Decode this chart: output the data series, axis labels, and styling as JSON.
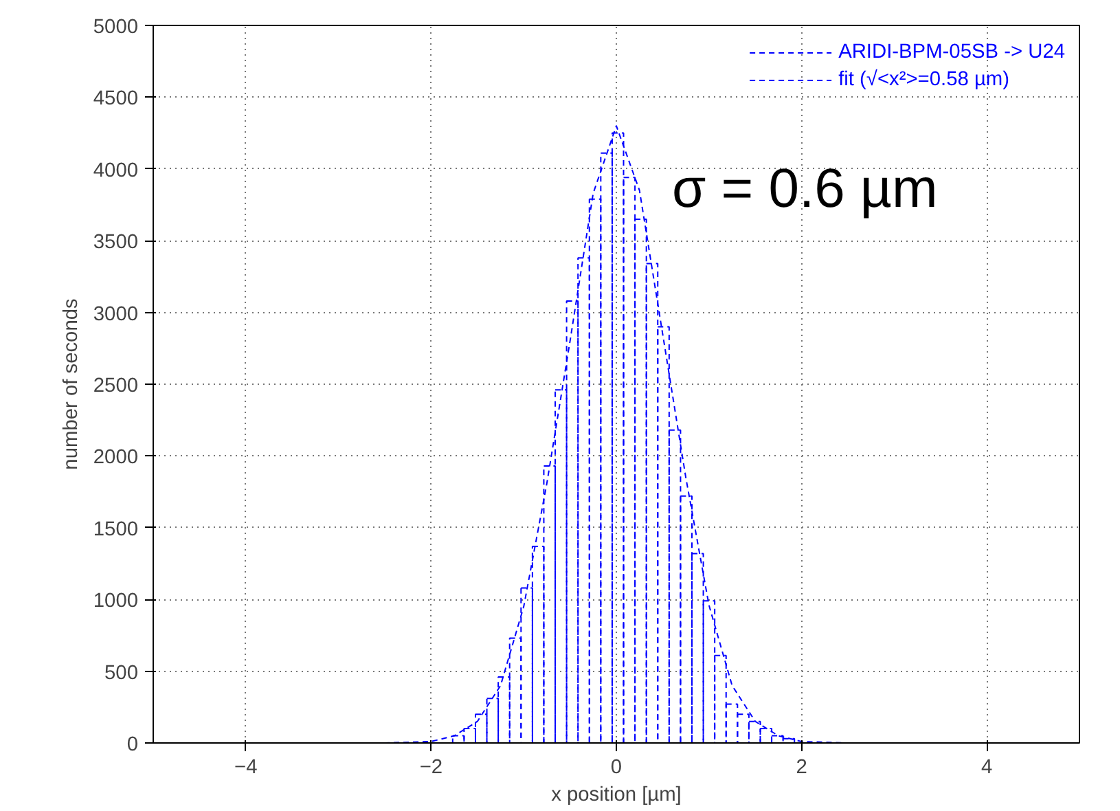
{
  "chart_data": {
    "type": "histogram",
    "xlabel": "x position [µm]",
    "ylabel": "number of seconds",
    "xlim": [
      -5,
      5
    ],
    "xticks": [
      -4,
      -2,
      0,
      2,
      4
    ],
    "ylim": [
      0,
      5000
    ],
    "yticks": [
      0,
      500,
      1000,
      1500,
      2000,
      2500,
      3000,
      3500,
      4000,
      4500,
      5000
    ],
    "grid": true,
    "legend": "top right",
    "line_style": "dashed",
    "annotations": [
      "σ = 0.6 µm"
    ],
    "series": [
      {
        "name": "ARIDI-BPM-05SB -> U24",
        "color": "#0000ff",
        "bins": [
          -1.767,
          -1.644,
          -1.521,
          -1.398,
          -1.275,
          -1.152,
          -1.029,
          -0.906,
          -0.783,
          -0.66,
          -0.537,
          -0.414,
          -0.291,
          -0.168,
          -0.045,
          0.078,
          0.201,
          0.324,
          0.447,
          0.57,
          0.693,
          0.816,
          0.939,
          1.062,
          1.185,
          1.308,
          1.431,
          1.554,
          1.677,
          1.8,
          1.923
        ],
        "values": [
          50,
          100,
          200,
          310,
          460,
          730,
          1080,
          1370,
          1930,
          2460,
          3080,
          3380,
          3790,
          4110,
          4250,
          3940,
          3650,
          3340,
          2900,
          2180,
          1720,
          1320,
          990,
          610,
          270,
          200,
          150,
          100,
          50,
          30
        ]
      },
      {
        "type": "line",
        "name": "fit (√<x²>=0.58 µm)",
        "color": "#0000ff",
        "x": [
          -5,
          -2.5,
          -2,
          -1.75,
          -1.5,
          -1.25,
          -1,
          -0.75,
          -0.5,
          -0.25,
          0,
          0.25,
          0.5,
          0.75,
          1,
          1.25,
          1.5,
          1.75,
          2,
          2.5,
          5
        ],
        "values": [
          0,
          0,
          10,
          50,
          150,
          400,
          950,
          1810,
          2800,
          3830,
          4300,
          3850,
          2850,
          1850,
          960,
          400,
          150,
          50,
          10,
          0,
          0
        ]
      }
    ]
  }
}
